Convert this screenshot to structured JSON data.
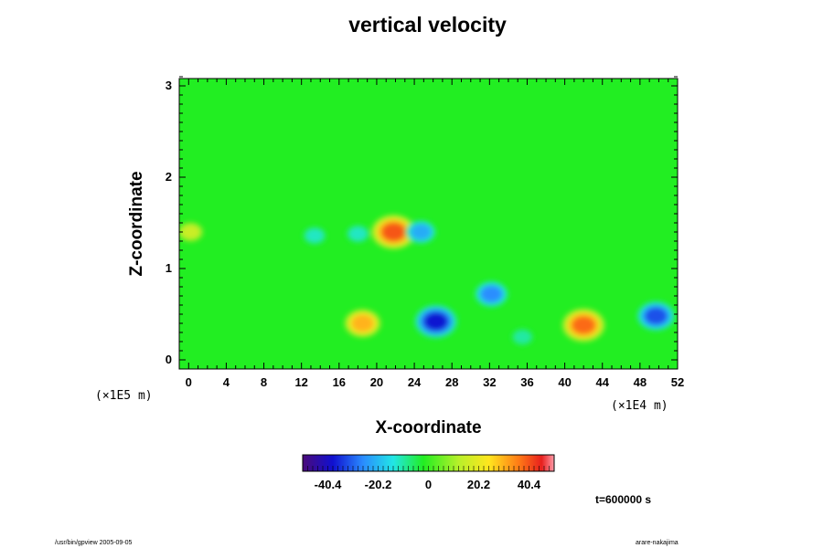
{
  "chart_data": {
    "type": "heatmap",
    "title": "vertical velocity",
    "xlabel": "X-coordinate",
    "ylabel": "Z-coordinate",
    "x_ticks": [
      "0",
      "4",
      "8",
      "12",
      "16",
      "20",
      "24",
      "28",
      "32",
      "36",
      "40",
      "44",
      "48",
      "52"
    ],
    "y_ticks": [
      "0",
      "1",
      "2",
      "3"
    ],
    "x_unit": "(×1E4 m)",
    "y_unit": "(×1E5 m)",
    "xlim": [
      -1,
      52
    ],
    "ylim": [
      -0.1,
      3.08
    ],
    "colorbar": {
      "ticks": [
        "-40.4",
        "-20.2",
        "0",
        "20.2",
        "40.4"
      ],
      "tick_values": [
        -40.4,
        -20.2,
        0,
        20.2,
        40.4
      ],
      "range": [
        -50.5,
        50.5
      ]
    },
    "background_value": 0,
    "features": [
      {
        "x": 18.5,
        "z": 0.4,
        "value": 30
      },
      {
        "x": 42.0,
        "z": 0.38,
        "value": 38
      },
      {
        "x": 21.8,
        "z": 1.4,
        "value": 40
      },
      {
        "x": 26.3,
        "z": 0.42,
        "value": -38
      },
      {
        "x": 49.7,
        "z": 0.48,
        "value": -32
      },
      {
        "x": 24.7,
        "z": 1.4,
        "value": -22
      },
      {
        "x": 32.2,
        "z": 0.72,
        "value": -26
      },
      {
        "x": 13.4,
        "z": 1.36,
        "value": -12
      },
      {
        "x": 35.5,
        "z": 0.25,
        "value": -10
      },
      {
        "x": 18.0,
        "z": 1.38,
        "value": -12
      },
      {
        "x": 0.2,
        "z": 1.4,
        "value": 15
      }
    ]
  },
  "annotations": {
    "time": "t=600000 s",
    "footer_left": "/usr/bin/gpview 2005-09-05",
    "footer_right": "arare-nakajima"
  }
}
